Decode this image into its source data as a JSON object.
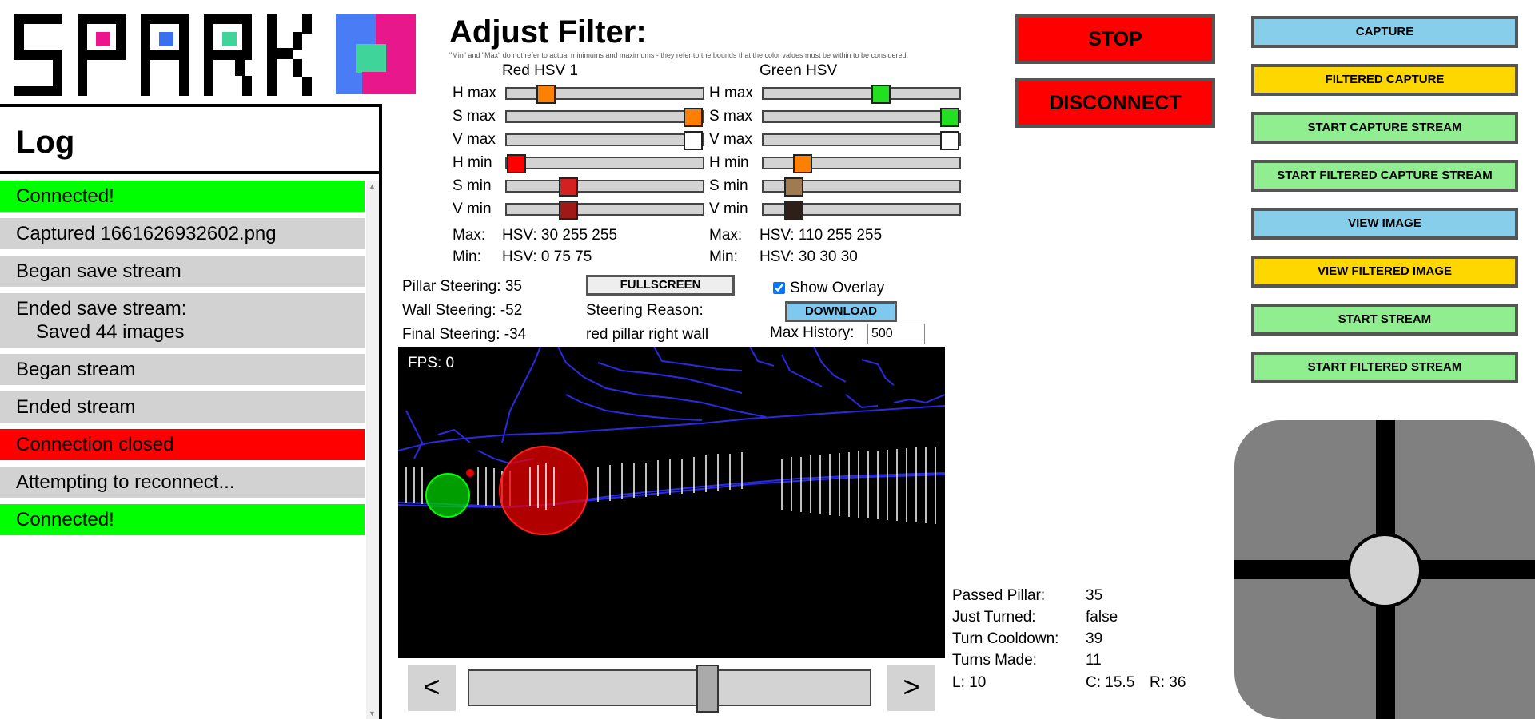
{
  "log": {
    "title": "Log",
    "entries": [
      {
        "text": "Connected!",
        "type": "green"
      },
      {
        "text": "Captured 1661626932602.png",
        "type": "gray"
      },
      {
        "text": "Began save stream",
        "type": "gray"
      },
      {
        "text": "Ended save stream:",
        "sub": "Saved 44 images",
        "type": "gray"
      },
      {
        "text": "Began stream",
        "type": "gray"
      },
      {
        "text": "Ended stream",
        "type": "gray"
      },
      {
        "text": "Connection closed",
        "type": "red"
      },
      {
        "text": "Attempting to reconnect...",
        "type": "gray"
      },
      {
        "text": "Connected!",
        "type": "green"
      }
    ]
  },
  "filter": {
    "title": "Adjust Filter:",
    "note": "\"Min\" and \"Max\" do not refer to actual minimums and maximums - they refer to the bounds that the color values must be within to be considered.",
    "groups": [
      {
        "name": "Red HSV 1",
        "sliders": [
          {
            "label": "H max",
            "value": 30,
            "max": 180,
            "color": "#ff8000"
          },
          {
            "label": "S max",
            "value": 255,
            "max": 255,
            "color": "#ff8000"
          },
          {
            "label": "V max",
            "value": 255,
            "max": 255,
            "color": "#ffffff"
          },
          {
            "label": "H min",
            "value": 0,
            "max": 180,
            "color": "#ff0000"
          },
          {
            "label": "S min",
            "value": 75,
            "max": 255,
            "color": "#d42020"
          },
          {
            "label": "V min",
            "value": 75,
            "max": 255,
            "color": "#a01818"
          }
        ],
        "max_label": "Max:",
        "max_text": "HSV: 30 255 255",
        "min_label": "Min:",
        "min_text": "HSV: 0 75 75"
      },
      {
        "name": "Green HSV",
        "sliders": [
          {
            "label": "H max",
            "value": 110,
            "max": 180,
            "color": "#20e020"
          },
          {
            "label": "S max",
            "value": 255,
            "max": 255,
            "color": "#20e020"
          },
          {
            "label": "V max",
            "value": 255,
            "max": 255,
            "color": "#ffffff"
          },
          {
            "label": "H min",
            "value": 30,
            "max": 180,
            "color": "#ff8000"
          },
          {
            "label": "S min",
            "value": 30,
            "max": 255,
            "color": "#a07a50"
          },
          {
            "label": "V min",
            "value": 30,
            "max": 255,
            "color": "#2e2018"
          }
        ],
        "max_label": "Max:",
        "max_text": "HSV: 110 255 255",
        "min_label": "Min:",
        "min_text": "HSV: 30 30 30"
      }
    ]
  },
  "steering": {
    "pillar": "Pillar Steering: 35",
    "wall": "Wall Steering: -52",
    "final": "Final Steering: -34",
    "reason_label": "Steering Reason:",
    "reason": "red pillar right wall",
    "fullscreen": "FULLSCREEN",
    "show_overlay": "Show Overlay",
    "show_overlay_checked": true,
    "download": "DOWNLOAD",
    "max_history_label": "Max History:",
    "max_history_value": "500"
  },
  "camera": {
    "fps": "FPS: 0"
  },
  "history": {
    "prev": "<",
    "next": ">",
    "position": 0.6
  },
  "stats": {
    "passed_pillar_label": "Passed Pillar:",
    "passed_pillar": "35",
    "just_turned_label": "Just Turned:",
    "just_turned": "false",
    "turn_cooldown_label": "Turn Cooldown:",
    "turn_cooldown": "39",
    "turns_made_label": "Turns Made:",
    "turns_made": "11",
    "l": "L: 10",
    "c": "C: 15.5",
    "r": "R: 36"
  },
  "controls": {
    "stop": "STOP",
    "disconnect": "DISCONNECT",
    "buttons": [
      {
        "label": "CAPTURE",
        "color": "#87ceeb"
      },
      {
        "label": "FILTERED CAPTURE",
        "color": "#ffd700"
      },
      {
        "label": "START CAPTURE STREAM",
        "color": "#90ee90"
      },
      {
        "label": "START FILTERED CAPTURE STREAM",
        "color": "#90ee90"
      },
      {
        "label": "VIEW IMAGE",
        "color": "#87ceeb"
      },
      {
        "label": "VIEW FILTERED IMAGE",
        "color": "#ffd700"
      },
      {
        "label": "START STREAM",
        "color": "#90ee90"
      },
      {
        "label": "START FILTERED STREAM",
        "color": "#90ee90"
      }
    ]
  },
  "colors": {
    "stop_red": "#ff0000",
    "log_green": "#00ff00",
    "log_red": "#ff0000",
    "log_gray": "#d2d2d2"
  }
}
